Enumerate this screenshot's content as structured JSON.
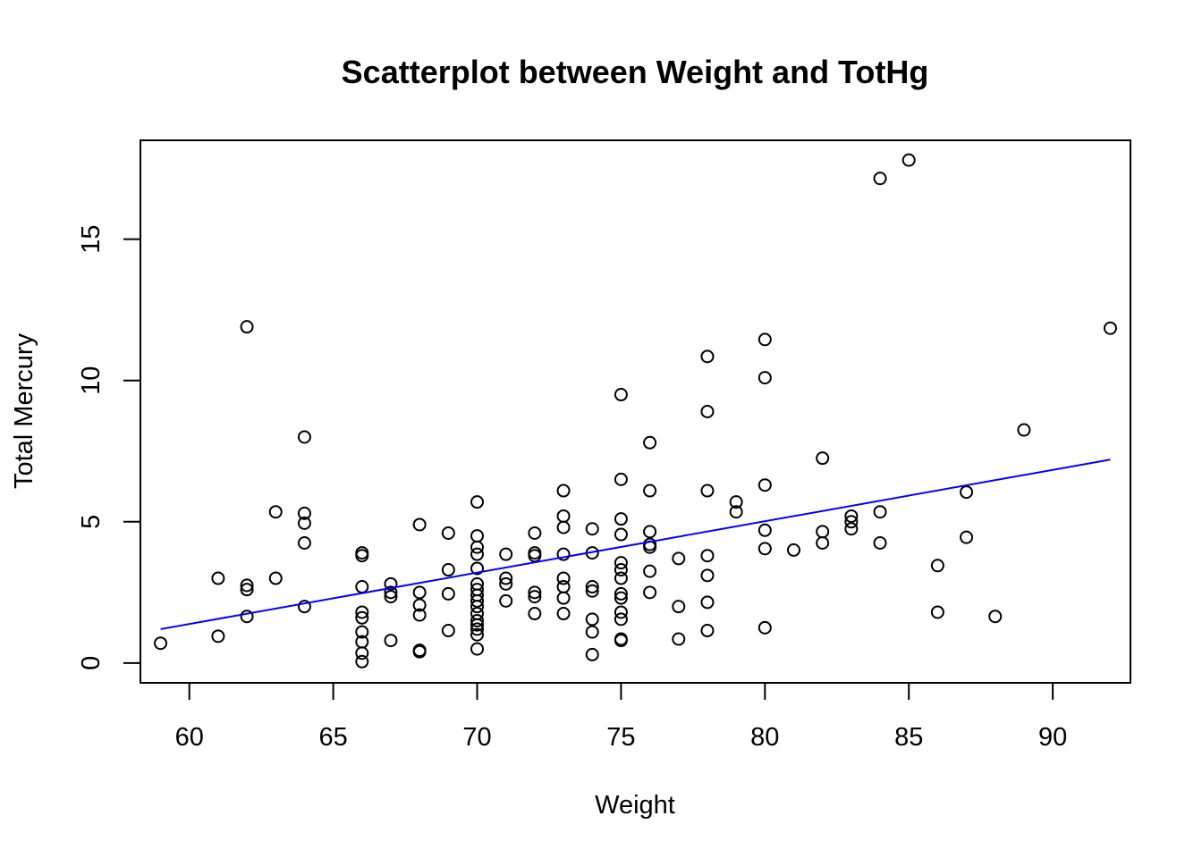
{
  "chart_data": {
    "type": "scatter",
    "title": "Scatterplot between Weight and TotHg",
    "xlabel": "Weight",
    "ylabel": "Total Mercury",
    "xlim": [
      58.3,
      92.7
    ],
    "ylim": [
      -0.7,
      18.5
    ],
    "xticks": [
      60,
      65,
      70,
      75,
      80,
      85,
      90
    ],
    "yticks": [
      0,
      5,
      10,
      15
    ],
    "xtick_labels": [
      "60",
      "65",
      "70",
      "75",
      "80",
      "85",
      "90"
    ],
    "ytick_labels": [
      "0",
      "5",
      "10",
      "15"
    ],
    "grid": false,
    "point_color": "#000000",
    "line_color": "#0000ff",
    "fit_line": {
      "x": [
        59,
        92
      ],
      "y": [
        1.2,
        7.2
      ]
    },
    "points": [
      [
        59,
        0.7
      ],
      [
        61,
        3.0
      ],
      [
        61,
        0.95
      ],
      [
        62,
        11.9
      ],
      [
        62,
        2.75
      ],
      [
        62,
        2.6
      ],
      [
        62,
        1.65
      ],
      [
        63,
        5.35
      ],
      [
        63,
        3.0
      ],
      [
        64,
        8.0
      ],
      [
        64,
        5.3
      ],
      [
        64,
        4.95
      ],
      [
        64,
        4.25
      ],
      [
        64,
        2.0
      ],
      [
        66,
        3.9
      ],
      [
        66,
        3.8
      ],
      [
        66,
        2.7
      ],
      [
        66,
        1.8
      ],
      [
        66,
        1.6
      ],
      [
        66,
        1.1
      ],
      [
        66,
        0.75
      ],
      [
        66,
        0.35
      ],
      [
        66,
        0.05
      ],
      [
        67,
        2.8
      ],
      [
        67,
        2.5
      ],
      [
        67,
        2.35
      ],
      [
        67,
        0.8
      ],
      [
        68,
        4.9
      ],
      [
        68,
        2.5
      ],
      [
        68,
        2.05
      ],
      [
        68,
        1.7
      ],
      [
        68,
        0.45
      ],
      [
        68,
        0.4
      ],
      [
        69,
        4.6
      ],
      [
        69,
        3.3
      ],
      [
        69,
        2.45
      ],
      [
        69,
        1.15
      ],
      [
        70,
        5.7
      ],
      [
        70,
        4.5
      ],
      [
        70,
        4.1
      ],
      [
        70,
        3.85
      ],
      [
        70,
        3.35
      ],
      [
        70,
        2.8
      ],
      [
        70,
        2.6
      ],
      [
        70,
        2.4
      ],
      [
        70,
        2.2
      ],
      [
        70,
        2.0
      ],
      [
        70,
        1.75
      ],
      [
        70,
        1.5
      ],
      [
        70,
        1.35
      ],
      [
        70,
        1.2
      ],
      [
        70,
        1.0
      ],
      [
        70,
        0.5
      ],
      [
        71,
        3.85
      ],
      [
        71,
        3.0
      ],
      [
        71,
        2.8
      ],
      [
        71,
        2.2
      ],
      [
        72,
        4.6
      ],
      [
        72,
        3.9
      ],
      [
        72,
        3.8
      ],
      [
        72,
        2.5
      ],
      [
        72,
        2.35
      ],
      [
        72,
        1.75
      ],
      [
        73,
        6.1
      ],
      [
        73,
        5.2
      ],
      [
        73,
        4.8
      ],
      [
        73,
        3.85
      ],
      [
        73,
        3.0
      ],
      [
        73,
        2.7
      ],
      [
        73,
        2.3
      ],
      [
        73,
        1.75
      ],
      [
        74,
        4.75
      ],
      [
        74,
        3.9
      ],
      [
        74,
        2.7
      ],
      [
        74,
        2.55
      ],
      [
        74,
        1.55
      ],
      [
        74,
        1.1
      ],
      [
        74,
        0.3
      ],
      [
        75,
        9.5
      ],
      [
        75,
        6.5
      ],
      [
        75,
        5.1
      ],
      [
        75,
        4.55
      ],
      [
        75,
        3.55
      ],
      [
        75,
        3.3
      ],
      [
        75,
        3.0
      ],
      [
        75,
        2.45
      ],
      [
        75,
        2.3
      ],
      [
        75,
        1.8
      ],
      [
        75,
        1.55
      ],
      [
        75,
        0.85
      ],
      [
        75,
        0.8
      ],
      [
        76,
        7.8
      ],
      [
        76,
        6.1
      ],
      [
        76,
        4.65
      ],
      [
        76,
        4.2
      ],
      [
        76,
        4.1
      ],
      [
        76,
        3.25
      ],
      [
        76,
        2.5
      ],
      [
        77,
        3.7
      ],
      [
        77,
        2.0
      ],
      [
        77,
        0.85
      ],
      [
        78,
        10.85
      ],
      [
        78,
        8.9
      ],
      [
        78,
        6.1
      ],
      [
        78,
        3.8
      ],
      [
        78,
        3.1
      ],
      [
        78,
        2.15
      ],
      [
        78,
        1.15
      ],
      [
        79,
        5.7
      ],
      [
        79,
        5.35
      ],
      [
        80,
        11.45
      ],
      [
        80,
        10.1
      ],
      [
        80,
        6.3
      ],
      [
        80,
        4.7
      ],
      [
        80,
        4.05
      ],
      [
        80,
        1.25
      ],
      [
        81,
        4.0
      ],
      [
        82,
        7.25
      ],
      [
        82,
        4.65
      ],
      [
        82,
        4.25
      ],
      [
        83,
        5.2
      ],
      [
        83,
        5.0
      ],
      [
        83,
        4.75
      ],
      [
        84,
        17.15
      ],
      [
        84,
        5.35
      ],
      [
        84,
        4.25
      ],
      [
        85,
        17.8
      ],
      [
        86,
        3.45
      ],
      [
        86,
        1.8
      ],
      [
        87,
        6.05
      ],
      [
        87,
        4.45
      ],
      [
        88,
        1.65
      ],
      [
        89,
        8.25
      ],
      [
        92,
        11.85
      ]
    ]
  }
}
